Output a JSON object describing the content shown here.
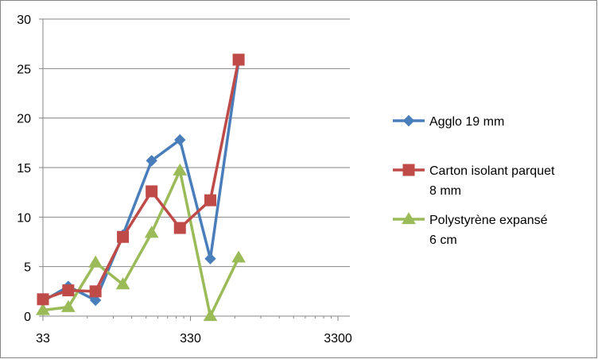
{
  "chart_data": {
    "type": "line",
    "x_scale": "log",
    "x_tick_labels": [
      "33",
      "330",
      "3300"
    ],
    "y_tick_labels": [
      "0",
      "5",
      "10",
      "15",
      "20",
      "25",
      "30"
    ],
    "xlim": [
      33,
      3300
    ],
    "ylim": [
      0,
      30
    ],
    "grid": "horizontal major gridlines",
    "legend_position": "right",
    "x": [
      33,
      49,
      75,
      115,
      180,
      280,
      450,
      700
    ],
    "series": [
      {
        "name": "Agglo 19 mm",
        "color": "#4a7ebb",
        "marker": "diamond",
        "values": [
          1.5,
          3.0,
          1.6,
          8.2,
          15.7,
          17.8,
          5.8,
          25.8
        ]
      },
      {
        "name": "Carton isolant parquet 8 mm",
        "color": "#be4b48",
        "marker": "square",
        "values": [
          1.7,
          2.6,
          2.5,
          8.0,
          12.6,
          8.9,
          11.7,
          25.9
        ]
      },
      {
        "name": "Polystyrène expansé 6 cm",
        "color": "#9bbb59",
        "marker": "triangle",
        "values": [
          0.6,
          0.9,
          5.4,
          3.2,
          8.4,
          14.7,
          0.0,
          5.9
        ]
      }
    ]
  },
  "legend": {
    "entries": [
      {
        "lines": [
          "Agglo 19 mm"
        ]
      },
      {
        "lines": [
          "Carton isolant parquet",
          "8 mm"
        ]
      },
      {
        "lines": [
          "Polystyrène expansé",
          "6 cm"
        ]
      }
    ]
  }
}
